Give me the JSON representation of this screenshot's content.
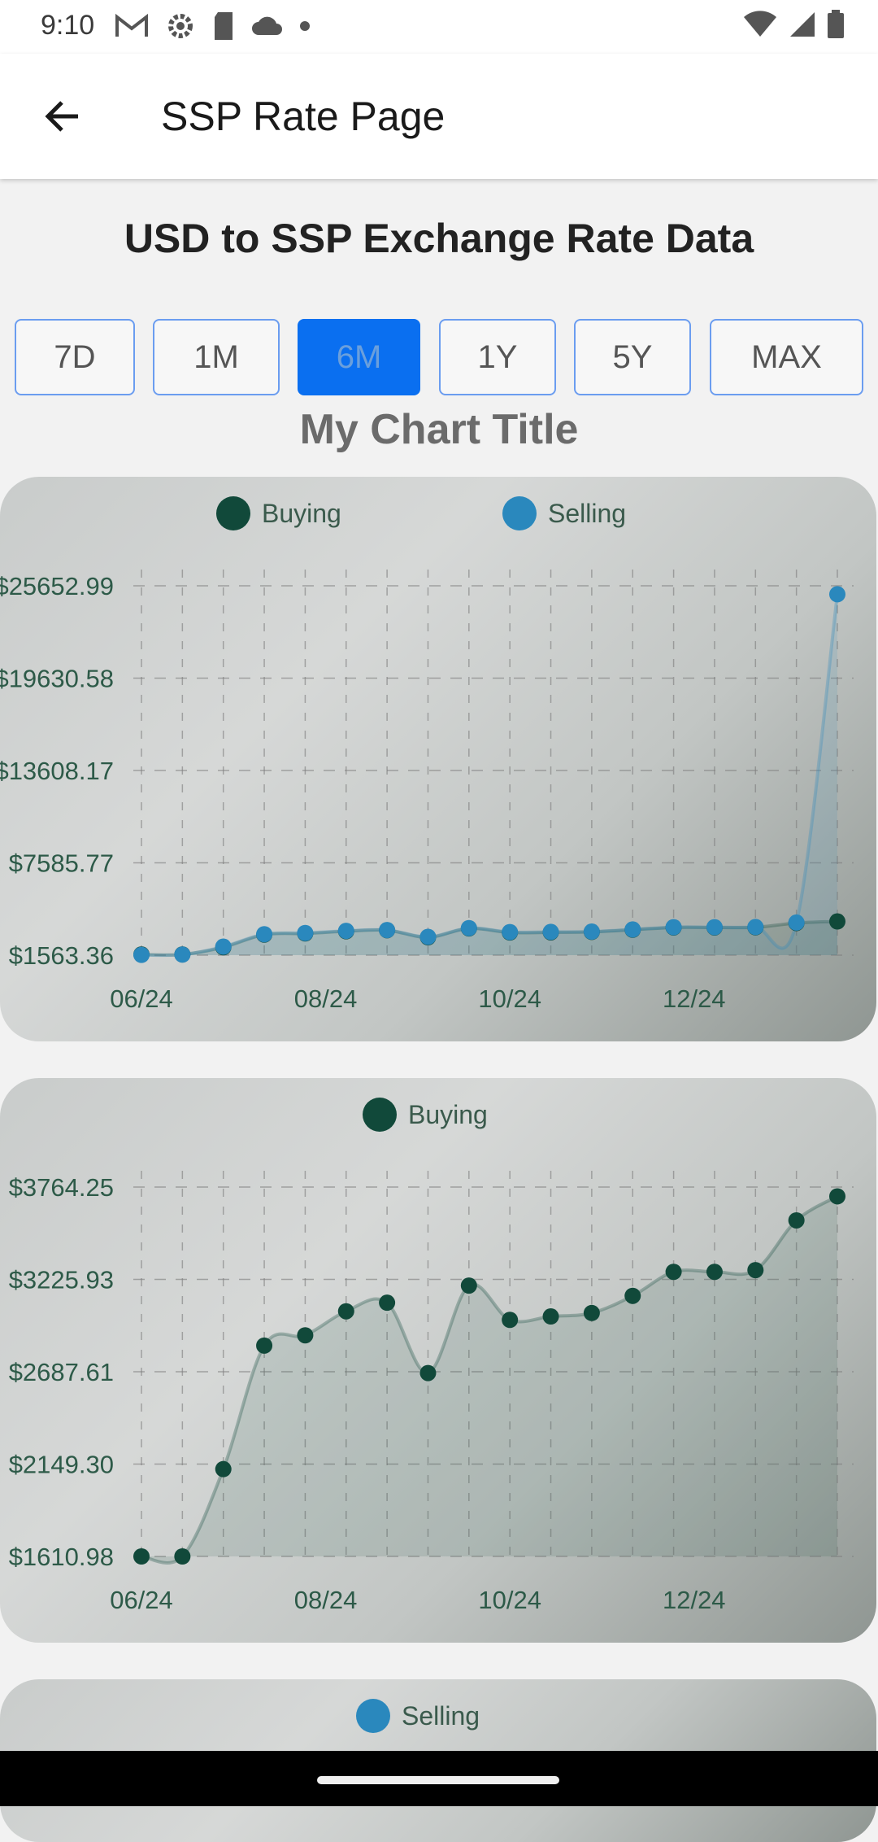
{
  "status": {
    "time": "9:10",
    "icons": [
      "gmail-icon",
      "settings-icon",
      "sd-card-icon",
      "cloud-icon",
      "dot-icon"
    ],
    "right_icons": [
      "wifi-icon",
      "signal-icon",
      "battery-icon"
    ]
  },
  "appbar": {
    "title": "SSP Rate Page",
    "back_icon": "arrow-left-icon"
  },
  "page": {
    "title": "USD to SSP Exchange Rate Data",
    "chart_title": "My Chart Title"
  },
  "ranges": [
    {
      "label": "7D",
      "active": false
    },
    {
      "label": "1M",
      "active": false
    },
    {
      "label": "6M",
      "active": true
    },
    {
      "label": "1Y",
      "active": false
    },
    {
      "label": "5Y",
      "active": false
    },
    {
      "label": "MAX",
      "active": false
    }
  ],
  "colors": {
    "buying": "#11493a",
    "selling": "#2a88bd",
    "active": "#0a6ff0",
    "border": "#6b9df0"
  },
  "chart_data": [
    {
      "type": "line",
      "legend": [
        "Buying",
        "Selling"
      ],
      "ytick_labels": [
        "$25652.99",
        "$19630.58",
        "$13608.17",
        "$7585.77",
        "$1563.36"
      ],
      "yticks": [
        25652.99,
        19630.58,
        13608.17,
        7585.77,
        1563.36
      ],
      "xtick_labels": [
        "06/24",
        "08/24",
        "10/24",
        "12/24"
      ],
      "ylim": [
        1563.36,
        25652.99
      ],
      "grid": true,
      "legend_position": "top",
      "series": [
        {
          "name": "Buying",
          "values": [
            1611,
            1611,
            2080,
            2900,
            2980,
            3120,
            3190,
            2730,
            3310,
            3040,
            3050,
            3080,
            3220,
            3370,
            3370,
            3380,
            3660,
            3764
          ]
        },
        {
          "name": "Selling",
          "values": [
            1580,
            1600,
            2120,
            2930,
            3010,
            3150,
            3200,
            2760,
            3330,
            3070,
            3080,
            3100,
            3240,
            3390,
            3390,
            3400,
            3690,
            25100
          ]
        }
      ]
    },
    {
      "type": "line",
      "legend": [
        "Buying"
      ],
      "ytick_labels": [
        "$3764.25",
        "$3225.93",
        "$2687.61",
        "$2149.30",
        "$1610.98"
      ],
      "yticks": [
        3764.25,
        3225.93,
        2687.61,
        2149.3,
        1610.98
      ],
      "xtick_labels": [
        "06/24",
        "08/24",
        "10/24",
        "12/24"
      ],
      "ylim": [
        1610.98,
        3764.25
      ],
      "grid": true,
      "legend_position": "top",
      "series": [
        {
          "name": "Buying",
          "values": [
            1611,
            1611,
            2120,
            2840,
            2900,
            3040,
            3090,
            2680,
            3190,
            2990,
            3010,
            3030,
            3130,
            3270,
            3270,
            3280,
            3570,
            3710
          ]
        }
      ]
    },
    {
      "type": "line",
      "legend": [
        "Selling"
      ],
      "legend_position": "top"
    }
  ]
}
